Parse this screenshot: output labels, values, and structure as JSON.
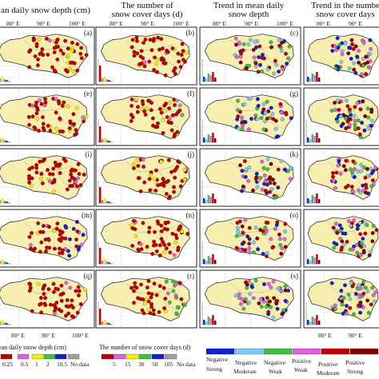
{
  "columns": [
    {
      "title_lines": [
        "an daily snow depth (cm)"
      ]
    },
    {
      "title_lines": [
        "The number of",
        "snow cover days (d)"
      ]
    },
    {
      "title_lines": [
        "Trend in mean daily",
        "snow depth"
      ]
    },
    {
      "title_lines": [
        "Trend in the numbe",
        "snow cover days"
      ]
    }
  ],
  "top_ticks": [
    "80° E",
    "90° E",
    "100° E"
  ],
  "bottom_ticks": [
    "80° E",
    "90° E",
    "100° E"
  ],
  "panel_letters": [
    [
      "(a)",
      "(b)",
      "(c)",
      ""
    ],
    [
      "(e)",
      "(f)",
      "(g)",
      ""
    ],
    [
      "(i)",
      "(j)",
      "(k)",
      ""
    ],
    [
      "(m)",
      "(n)",
      "(o)",
      ""
    ],
    [
      "(q)",
      "(r)",
      "(s)",
      ""
    ]
  ],
  "legends": {
    "depth": {
      "title": "ean daily snow depth (cm)",
      "labels": [
        "0.25",
        "0.5",
        "1",
        "2",
        "10.5",
        "No data"
      ],
      "colors": [
        "#c00000",
        "#e060e0",
        "#f0f000",
        "#40c040",
        "#1020d0",
        "#a0a0a0"
      ]
    },
    "days": {
      "title": "The number of snow cover days (d)",
      "labels": [
        "5",
        "15",
        "30",
        "50",
        "105",
        "No data"
      ],
      "colors": [
        "#c00000",
        "#e060e0",
        "#f0f000",
        "#40c040",
        "#1020d0",
        "#a0a0a0"
      ]
    },
    "trend": {
      "labels_top": [
        "Negative",
        "Negative",
        "Negative",
        "Positive",
        "Positive",
        "Positive"
      ],
      "labels_bottom": [
        "Strong",
        "Moderate",
        "Weak",
        "Weak",
        "Moderate",
        "Strong"
      ],
      "colors": [
        "#1020d0",
        "#80c8f0",
        "#40c040",
        "#e060e0",
        "#c00000",
        "#800000"
      ]
    }
  },
  "colors": {
    "land": "#f7efb0",
    "boundary": "#333333",
    "frame": "#222222"
  }
}
